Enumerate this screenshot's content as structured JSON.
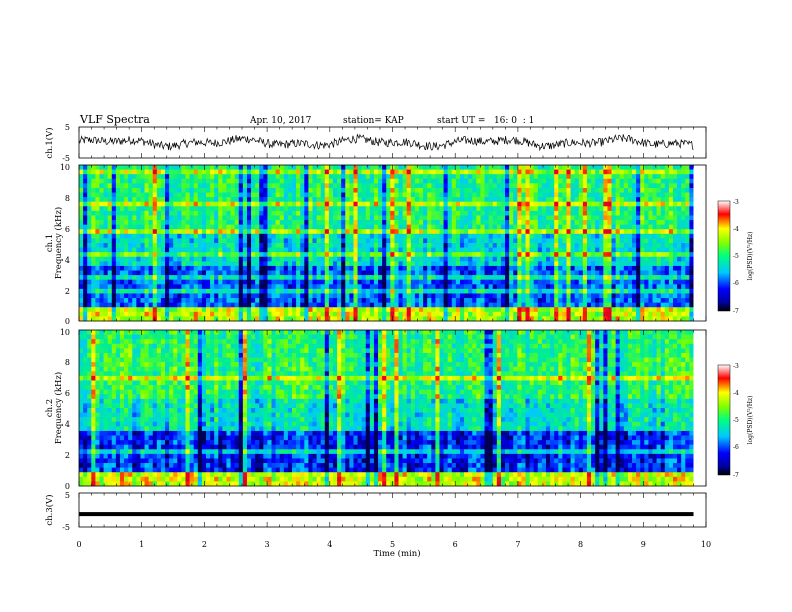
{
  "header": {
    "title": "VLF Spectra",
    "date": "Apr. 10, 2017",
    "station": "station= KAP",
    "start": "start UT =   16: 0  : 1"
  },
  "chart_data": [
    {
      "type": "line",
      "title": "",
      "ylabel": "ch.1(V)",
      "ylim": [
        -5,
        5
      ],
      "yticks": [
        "5",
        "-5"
      ],
      "xlim": [
        0,
        10
      ],
      "description_values": "noisy waveform centred near 0 V with amplitude ~±2 V",
      "series": [
        {
          "y_center": 0,
          "amplitude": 2
        }
      ]
    },
    {
      "type": "heatmap",
      "title": "",
      "ylabel_line1": "ch.1",
      "ylabel_line2": "Frequency (kHz)",
      "ylim": [
        0,
        10
      ],
      "yticks": [
        "0",
        "2",
        "4",
        "6",
        "8",
        "10"
      ],
      "xlim": [
        0,
        10
      ],
      "colorbar": {
        "label": "log(PSD)(V²/Hz)",
        "range": [
          -7,
          -3
        ],
        "ticks": [
          "-3",
          "-4",
          "-5",
          "-6",
          "-7"
        ]
      }
    },
    {
      "type": "heatmap",
      "title": "",
      "ylabel_line1": "ch.2",
      "ylabel_line2": "Frequency (kHz)",
      "ylim": [
        0,
        10
      ],
      "yticks": [
        "0",
        "2",
        "4",
        "6",
        "8",
        "10"
      ],
      "xlim": [
        0,
        10
      ],
      "colorbar": {
        "label": "log(PSD)(V²/Hz)",
        "range": [
          -7,
          -3
        ],
        "ticks": [
          "-3",
          "-4",
          "-5",
          "-6",
          "-7"
        ]
      }
    },
    {
      "type": "line",
      "title": "",
      "ylabel": "ch.3(V)",
      "ylim": [
        -5,
        5
      ],
      "yticks": [
        "5",
        "-5"
      ],
      "xlim": [
        0,
        10
      ],
      "xlabel": "Time (min)",
      "xticks": [
        "0",
        "1",
        "2",
        "3",
        "4",
        "5",
        "6",
        "7",
        "8",
        "9",
        "10"
      ],
      "series": [
        {
          "constant": -1.2
        }
      ]
    }
  ]
}
